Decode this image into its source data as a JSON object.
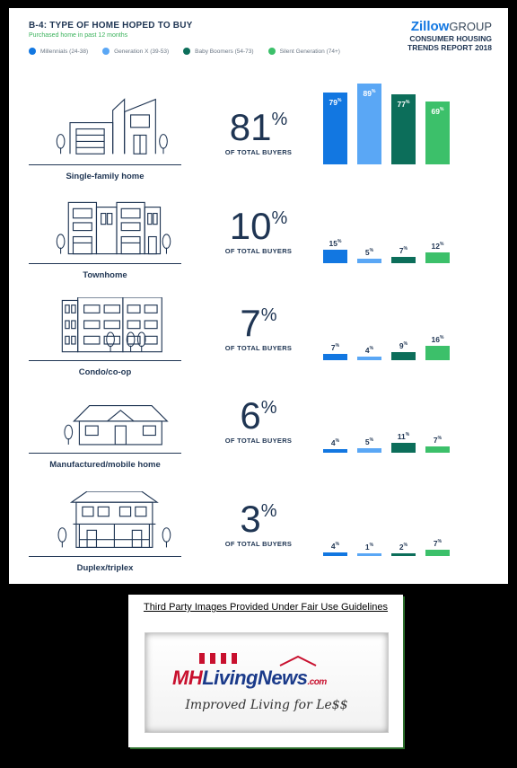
{
  "header": {
    "title": "B-4: TYPE OF HOME HOPED TO BUY",
    "subtitle": "Purchased home in past 12 months",
    "brand_name": "Zillow",
    "brand_group": "GROUP",
    "brand_line1": "CONSUMER HOUSING",
    "brand_line2": "TRENDS REPORT 2018"
  },
  "colors": {
    "millennials": "#1277e1",
    "genx": "#5aa7f5",
    "boomers": "#0c6e5a",
    "silent": "#3cc06a",
    "navy": "#1f3553"
  },
  "chart_data": {
    "type": "bar",
    "categories": [
      "Single-family home",
      "Townhome",
      "Condo/co-op",
      "Manufactured/mobile home",
      "Duplex/triplex"
    ],
    "total_caption": "OF TOTAL BUYERS",
    "totals": [
      "81",
      "10",
      "7",
      "6",
      "3"
    ],
    "series": [
      {
        "name": "Millennials (24-38)",
        "values": [
          79,
          15,
          7,
          4,
          4
        ]
      },
      {
        "name": "Generation X (39-53)",
        "values": [
          89,
          5,
          4,
          5,
          1
        ]
      },
      {
        "name": "Baby Boomers (54-73)",
        "values": [
          77,
          7,
          9,
          11,
          2
        ]
      },
      {
        "name": "Silent Generation (74+)",
        "values": [
          69,
          12,
          16,
          7,
          7
        ]
      }
    ],
    "ylim": [
      0,
      100
    ]
  },
  "footer": {
    "fair_use": "Third Party Images Provided Under Fair Use Guidelines",
    "logo_mh": "MH",
    "logo_ln": "LivingNews",
    "logo_com": ".com",
    "logo_tag": "Improved Living for Le$$"
  }
}
